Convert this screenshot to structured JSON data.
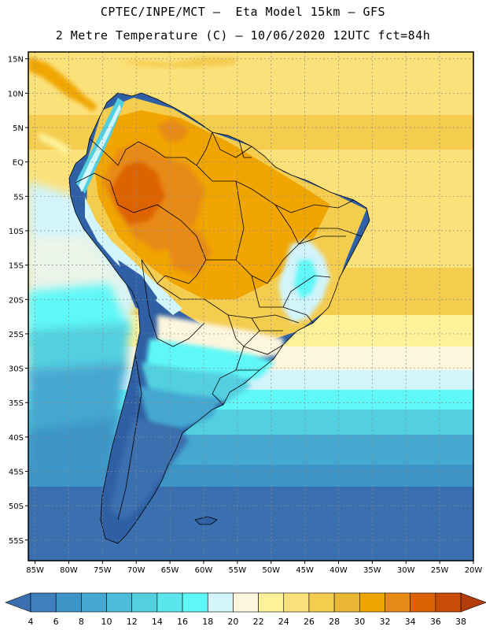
{
  "header": {
    "line1": "CPTEC/INPE/MCT –  Eta Model 15km – GFS",
    "line2": "2 Metre Temperature (C) – 10/06/2020 12UTC fct=84h"
  },
  "map": {
    "lat_labels": [
      "15N",
      "10N",
      "5N",
      "EQ",
      "5S",
      "10S",
      "15S",
      "20S",
      "25S",
      "30S",
      "35S",
      "40S",
      "45S",
      "50S",
      "55S"
    ],
    "lon_labels": [
      "85W",
      "80W",
      "75W",
      "70W",
      "65W",
      "60W",
      "55W",
      "50W",
      "45W",
      "40W",
      "35W",
      "30W",
      "25W",
      "20W"
    ],
    "lat_range": [
      -58,
      16
    ],
    "lon_range": [
      -86,
      -20
    ]
  },
  "colorbar": {
    "labels": [
      "4",
      "6",
      "8",
      "10",
      "12",
      "14",
      "16",
      "18",
      "20",
      "22",
      "24",
      "26",
      "28",
      "30",
      "32",
      "34",
      "36",
      "38"
    ],
    "colors": [
      "#3a6fb0",
      "#3f7fbd",
      "#3d95c7",
      "#44a8d1",
      "#4dbcd8",
      "#52d0e0",
      "#5ae6ec",
      "#5ff8f8",
      "#d2f4fb",
      "#fdf5dc",
      "#fdf29a",
      "#fbe17a",
      "#f4cc4e",
      "#eab734",
      "#f0a500",
      "#e88a16",
      "#dd6206",
      "#c94b05",
      "#b23d0a"
    ]
  }
}
